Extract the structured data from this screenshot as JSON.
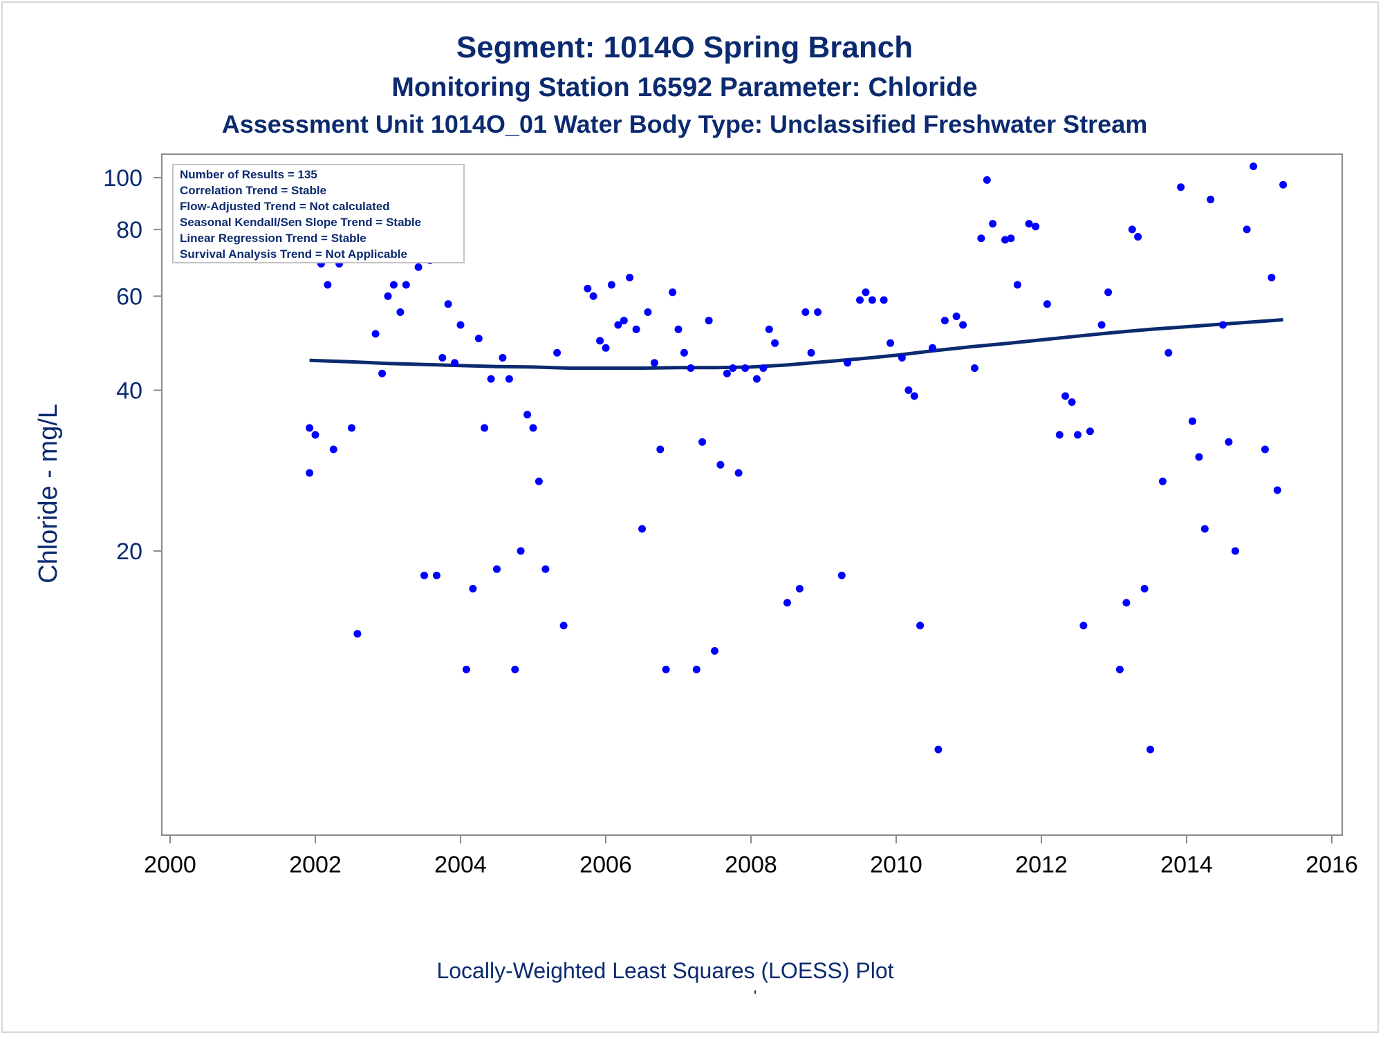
{
  "titles": {
    "title": "Segment: 1014O  Spring Branch",
    "subtitle": "Monitoring Station 16592 Parameter: Chloride",
    "subtitle2": "Assessment Unit 1014O_01   Water Body Type: Unclassified Freshwater Stream"
  },
  "footnote": "Locally-Weighted Least Squares (LOESS) Plot",
  "footnote_mark": "'",
  "stats_box": [
    "Number of Results = 135",
    "Correlation Trend = Stable",
    "Flow-Adjusted Trend = Not calculated",
    "Seasonal Kendall/Sen Slope Trend = Stable",
    "Linear Regression Trend = Stable",
    "Survival Analysis Trend = Not Applicable"
  ],
  "colors": {
    "text": "#0b2a6f",
    "points": "#0000ff",
    "loess": "#0b2a6f",
    "axis": "#8a8a8a"
  },
  "chart_data": {
    "type": "scatter",
    "title": "Segment: 1014O  Spring Branch",
    "xlabel": "",
    "ylabel": "Chloride - mg/L",
    "xlim": [
      2000,
      2016
    ],
    "ylim": [
      6,
      100
    ],
    "yscale": "log",
    "grid": false,
    "x_ticks": [
      2000,
      2002,
      2004,
      2006,
      2008,
      2010,
      2012,
      2014,
      2016
    ],
    "x_tick_labels": [
      "2000",
      "2002",
      "2004",
      "2006",
      "2008",
      "2010",
      "2012",
      "2014",
      "2016"
    ],
    "y_ticks": [
      20,
      40,
      60,
      80,
      100
    ],
    "y_tick_labels": [
      "20",
      "40",
      "60",
      "80",
      "100"
    ],
    "points": [
      [
        2001.92,
        28
      ],
      [
        2001.92,
        34
      ],
      [
        2002.0,
        33
      ],
      [
        2002.08,
        69
      ],
      [
        2002.17,
        63
      ],
      [
        2002.25,
        31
      ],
      [
        2002.33,
        69
      ],
      [
        2002.42,
        72
      ],
      [
        2002.5,
        34
      ],
      [
        2002.58,
        14
      ],
      [
        2002.67,
        71
      ],
      [
        2002.75,
        72
      ],
      [
        2002.83,
        51
      ],
      [
        2002.92,
        43
      ],
      [
        2003.0,
        60
      ],
      [
        2003.08,
        63
      ],
      [
        2003.17,
        56
      ],
      [
        2003.25,
        63
      ],
      [
        2003.33,
        72
      ],
      [
        2003.42,
        68
      ],
      [
        2003.5,
        18
      ],
      [
        2003.58,
        70
      ],
      [
        2003.67,
        18
      ],
      [
        2003.75,
        46
      ],
      [
        2003.83,
        58
      ],
      [
        2003.92,
        45
      ],
      [
        2004.0,
        53
      ],
      [
        2004.08,
        12
      ],
      [
        2004.17,
        17
      ],
      [
        2004.25,
        50
      ],
      [
        2004.33,
        34
      ],
      [
        2004.42,
        42
      ],
      [
        2004.5,
        18.5
      ],
      [
        2004.58,
        46
      ],
      [
        2004.67,
        42
      ],
      [
        2004.75,
        12
      ],
      [
        2004.83,
        20
      ],
      [
        2004.92,
        36
      ],
      [
        2005.0,
        34
      ],
      [
        2005.08,
        27
      ],
      [
        2005.17,
        18.5
      ],
      [
        2005.33,
        47
      ],
      [
        2005.42,
        14.5
      ],
      [
        2005.75,
        62
      ],
      [
        2005.83,
        60
      ],
      [
        2005.92,
        49.5
      ],
      [
        2006.0,
        48
      ],
      [
        2006.08,
        63
      ],
      [
        2006.17,
        53
      ],
      [
        2006.25,
        54
      ],
      [
        2006.33,
        65
      ],
      [
        2006.42,
        52
      ],
      [
        2006.5,
        22
      ],
      [
        2006.58,
        56
      ],
      [
        2006.67,
        45
      ],
      [
        2006.75,
        31
      ],
      [
        2006.83,
        12
      ],
      [
        2006.92,
        61
      ],
      [
        2007.0,
        52
      ],
      [
        2007.08,
        47
      ],
      [
        2007.17,
        44
      ],
      [
        2007.25,
        12
      ],
      [
        2007.33,
        32
      ],
      [
        2007.42,
        54
      ],
      [
        2007.5,
        13
      ],
      [
        2007.58,
        29
      ],
      [
        2007.67,
        43
      ],
      [
        2007.75,
        44
      ],
      [
        2007.83,
        28
      ],
      [
        2007.92,
        44
      ],
      [
        2008.08,
        42
      ],
      [
        2008.17,
        44
      ],
      [
        2008.25,
        52
      ],
      [
        2008.33,
        49
      ],
      [
        2008.5,
        16
      ],
      [
        2008.67,
        17
      ],
      [
        2008.75,
        56
      ],
      [
        2008.83,
        47
      ],
      [
        2008.92,
        56
      ],
      [
        2009.25,
        18
      ],
      [
        2009.33,
        45
      ],
      [
        2009.5,
        59
      ],
      [
        2009.58,
        61
      ],
      [
        2009.67,
        59
      ],
      [
        2009.83,
        59
      ],
      [
        2009.92,
        49
      ],
      [
        2010.08,
        46
      ],
      [
        2010.17,
        40
      ],
      [
        2010.25,
        39
      ],
      [
        2010.33,
        14.5
      ],
      [
        2010.5,
        48
      ],
      [
        2010.58,
        8.5
      ],
      [
        2010.67,
        54
      ],
      [
        2010.83,
        55
      ],
      [
        2010.92,
        53
      ],
      [
        2011.08,
        44
      ],
      [
        2011.17,
        77
      ],
      [
        2011.25,
        99
      ],
      [
        2011.33,
        82
      ],
      [
        2011.5,
        76.5
      ],
      [
        2011.58,
        77
      ],
      [
        2011.67,
        63
      ],
      [
        2011.83,
        82
      ],
      [
        2011.92,
        81
      ],
      [
        2012.08,
        58
      ],
      [
        2012.25,
        33
      ],
      [
        2012.33,
        39
      ],
      [
        2012.42,
        38
      ],
      [
        2012.5,
        33
      ],
      [
        2012.58,
        14.5
      ],
      [
        2012.67,
        33.5
      ],
      [
        2012.83,
        53
      ],
      [
        2012.92,
        61
      ],
      [
        2013.08,
        12
      ],
      [
        2013.17,
        16
      ],
      [
        2013.25,
        80
      ],
      [
        2013.33,
        77.5
      ],
      [
        2013.42,
        17
      ],
      [
        2013.5,
        8.5
      ],
      [
        2013.67,
        27
      ],
      [
        2013.75,
        47
      ],
      [
        2013.92,
        96
      ],
      [
        2014.08,
        35
      ],
      [
        2014.17,
        30
      ],
      [
        2014.25,
        22
      ],
      [
        2014.33,
        91
      ],
      [
        2014.5,
        53
      ],
      [
        2014.58,
        32
      ],
      [
        2014.67,
        20
      ],
      [
        2014.83,
        80
      ],
      [
        2014.92,
        105
      ],
      [
        2015.08,
        31
      ],
      [
        2015.17,
        65
      ],
      [
        2015.25,
        26
      ],
      [
        2015.33,
        97
      ]
    ],
    "loess": [
      [
        2001.92,
        45.5
      ],
      [
        2002.5,
        45.2
      ],
      [
        2003.0,
        44.9
      ],
      [
        2003.5,
        44.7
      ],
      [
        2004.0,
        44.5
      ],
      [
        2004.5,
        44.3
      ],
      [
        2005.0,
        44.2
      ],
      [
        2005.5,
        44.0
      ],
      [
        2006.0,
        44.0
      ],
      [
        2006.5,
        44.0
      ],
      [
        2007.0,
        44.1
      ],
      [
        2007.5,
        44.1
      ],
      [
        2008.0,
        44.2
      ],
      [
        2008.5,
        44.6
      ],
      [
        2009.0,
        45.2
      ],
      [
        2009.5,
        45.8
      ],
      [
        2010.0,
        46.5
      ],
      [
        2010.5,
        47.4
      ],
      [
        2011.0,
        48.2
      ],
      [
        2011.5,
        48.9
      ],
      [
        2012.0,
        49.7
      ],
      [
        2012.5,
        50.5
      ],
      [
        2013.0,
        51.3
      ],
      [
        2013.5,
        52.0
      ],
      [
        2014.0,
        52.6
      ],
      [
        2014.5,
        53.2
      ],
      [
        2015.0,
        53.8
      ],
      [
        2015.33,
        54.2
      ]
    ]
  }
}
